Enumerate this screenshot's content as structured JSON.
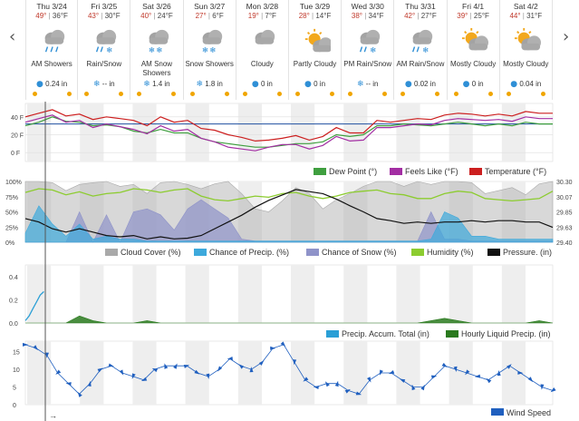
{
  "nav": {
    "prev_label": "‹",
    "next_label": "›"
  },
  "days": [
    {
      "date": "Thu 3/24",
      "hi": "49°",
      "lo": "36°F",
      "cond": "AM Showers",
      "pc_icon": "rain-drop-icon",
      "pc_glyph": "●",
      "precip": "0.24 in",
      "icon": "rain"
    },
    {
      "date": "Fri 3/25",
      "hi": "43°",
      "lo": "30°F",
      "cond": "Rain/Snow",
      "pc_icon": "snowflake-icon",
      "pc_glyph": "❄",
      "precip": "-- in",
      "icon": "rainsnow"
    },
    {
      "date": "Sat 3/26",
      "hi": "40°",
      "lo": "24°F",
      "cond": "AM Snow Showers",
      "pc_icon": "snowflake-icon",
      "pc_glyph": "❄",
      "precip": "1.4 in",
      "icon": "snow"
    },
    {
      "date": "Sun 3/27",
      "hi": "27°",
      "lo": "6°F",
      "cond": "Snow Showers",
      "pc_icon": "snowflake-icon",
      "pc_glyph": "❄",
      "precip": "1.8 in",
      "icon": "snow"
    },
    {
      "date": "Mon 3/28",
      "hi": "19°",
      "lo": "7°F",
      "cond": "Cloudy",
      "pc_icon": "rain-drop-icon",
      "pc_glyph": "●",
      "precip": "0 in",
      "icon": "cloudy"
    },
    {
      "date": "Tue 3/29",
      "hi": "28°",
      "lo": "14°F",
      "cond": "Partly Cloudy",
      "pc_icon": "rain-drop-icon",
      "pc_glyph": "●",
      "precip": "0 in",
      "icon": "partly"
    },
    {
      "date": "Wed 3/30",
      "hi": "38°",
      "lo": "34°F",
      "cond": "PM Rain/Snow",
      "pc_icon": "snowflake-icon",
      "pc_glyph": "❄",
      "precip": "-- in",
      "icon": "rainsnow"
    },
    {
      "date": "Thu 3/31",
      "hi": "42°",
      "lo": "27°F",
      "cond": "AM Rain/Snow",
      "pc_icon": "rain-drop-icon",
      "pc_glyph": "●",
      "precip": "0.02 in",
      "icon": "rainsnow"
    },
    {
      "date": "Fri 4/1",
      "hi": "39°",
      "lo": "25°F",
      "cond": "Mostly Cloudy",
      "pc_icon": "rain-drop-icon",
      "pc_glyph": "●",
      "precip": "0 in",
      "icon": "mostly"
    },
    {
      "date": "Sat 4/2",
      "hi": "44°",
      "lo": "31°F",
      "cond": "Mostly Cloudy",
      "pc_icon": "rain-drop-icon",
      "pc_glyph": "●",
      "precip": "0.04 in",
      "icon": "mostly"
    }
  ],
  "colors": {
    "temperature": "#cc1f1f",
    "feels_like": "#a32ea3",
    "dew_point": "#3f9f3f",
    "cloud_cover": "#a9a9a9",
    "chance_precip": "#3da9dc",
    "chance_snow": "#8f93c9",
    "humidity": "#8ccc2f",
    "pressure": "#111111",
    "accum": "#2a9fd6",
    "hourly_liquid": "#2a7a1e",
    "wind": "#1f5fbf",
    "reference_line": "#1f4fa0"
  },
  "chart_data": [
    {
      "type": "line",
      "y_ticks": [
        "40 F",
        "20 F",
        "0 F"
      ],
      "ylim": [
        -10,
        55
      ],
      "reference_line": 32,
      "series": [
        {
          "name": "Temperature (°F)",
          "values": [
            40,
            44,
            48,
            41,
            43,
            37,
            40,
            38,
            36,
            30,
            40,
            34,
            36,
            27,
            25,
            20,
            17,
            13,
            14,
            16,
            19,
            14,
            18,
            28,
            22,
            22,
            36,
            34,
            36,
            38,
            37,
            42,
            44,
            43,
            41,
            43,
            41,
            46,
            44,
            44
          ]
        },
        {
          "name": "Feels Like (°F)",
          "values": [
            34,
            38,
            42,
            34,
            36,
            28,
            32,
            29,
            26,
            21,
            30,
            24,
            26,
            16,
            12,
            6,
            4,
            2,
            6,
            9,
            9,
            4,
            8,
            18,
            13,
            14,
            28,
            28,
            30,
            32,
            31,
            36,
            38,
            37,
            36,
            37,
            35,
            40,
            38,
            38
          ]
        },
        {
          "name": "Dew Point (°)",
          "values": [
            30,
            34,
            40,
            35,
            34,
            30,
            31,
            29,
            24,
            22,
            26,
            22,
            22,
            16,
            12,
            10,
            8,
            6,
            6,
            8,
            10,
            10,
            12,
            20,
            18,
            20,
            30,
            30,
            32,
            31,
            30,
            32,
            34,
            32,
            30,
            32,
            30,
            34,
            32,
            32
          ]
        }
      ]
    },
    {
      "type": "area",
      "y_ticks": [
        "100%",
        "75%",
        "50%",
        "25%",
        "0%"
      ],
      "y2_ticks": [
        "30.30",
        "30.07",
        "29.85",
        "29.63",
        "29.40"
      ],
      "ylim": [
        0,
        100
      ],
      "y2lim": [
        29.4,
        30.3
      ],
      "series": [
        {
          "name": "Cloud Cover (%)",
          "values": [
            100,
            100,
            98,
            85,
            95,
            98,
            100,
            92,
            95,
            80,
            98,
            100,
            95,
            88,
            96,
            100,
            80,
            55,
            50,
            68,
            90,
            80,
            55,
            70,
            80,
            92,
            100,
            100,
            92,
            100,
            95,
            100,
            100,
            98,
            80,
            85,
            90,
            78,
            96,
            100
          ]
        },
        {
          "name": "Chance of Precip. (%)",
          "values": [
            15,
            60,
            30,
            10,
            30,
            5,
            10,
            5,
            5,
            2,
            2,
            2,
            2,
            2,
            2,
            2,
            2,
            2,
            2,
            2,
            2,
            2,
            2,
            2,
            2,
            2,
            2,
            2,
            2,
            2,
            5,
            50,
            40,
            10,
            10,
            5,
            5,
            5,
            5,
            5
          ]
        },
        {
          "name": "Chance of Snow (%)",
          "values": [
            0,
            0,
            0,
            0,
            50,
            0,
            45,
            0,
            50,
            55,
            45,
            20,
            55,
            70,
            55,
            40,
            5,
            2,
            2,
            2,
            2,
            2,
            2,
            2,
            2,
            2,
            2,
            2,
            2,
            2,
            50,
            5,
            5,
            2,
            2,
            2,
            2,
            2,
            2,
            2
          ]
        },
        {
          "name": "Humidity (%)",
          "values": [
            82,
            88,
            86,
            78,
            83,
            76,
            80,
            82,
            88,
            86,
            82,
            86,
            88,
            76,
            70,
            68,
            72,
            76,
            74,
            80,
            82,
            76,
            72,
            76,
            82,
            84,
            86,
            80,
            78,
            72,
            72,
            80,
            84,
            82,
            72,
            70,
            68,
            70,
            72,
            84
          ]
        },
        {
          "name": "Pressure. (in)",
          "values": [
            29.75,
            29.7,
            29.6,
            29.55,
            29.6,
            29.55,
            29.5,
            29.48,
            29.5,
            29.45,
            29.48,
            29.45,
            29.46,
            29.5,
            29.6,
            29.7,
            29.8,
            29.92,
            30.02,
            30.1,
            30.18,
            30.15,
            30.12,
            30.04,
            29.94,
            29.85,
            29.75,
            29.72,
            29.68,
            29.7,
            29.68,
            29.7,
            29.7,
            29.72,
            29.7,
            29.72,
            29.72,
            29.7,
            29.7,
            29.62
          ]
        }
      ]
    },
    {
      "type": "area",
      "y_ticks": [
        "0.4",
        "0.2",
        "0.0"
      ],
      "ylim": [
        0,
        0.5
      ],
      "series": [
        {
          "name": "Precip. Accum. Total (in)",
          "values": [
            0.02,
            0.06,
            0.12,
            0.18,
            0.24,
            0.27
          ]
        },
        {
          "name": "Hourly Liquid Precip. (in)",
          "values": [
            0,
            0,
            0,
            0,
            0.03,
            0.01,
            0,
            0,
            0,
            0.01,
            0,
            0,
            0,
            0,
            0,
            0,
            0,
            0,
            0,
            0,
            0,
            0,
            0,
            0,
            0,
            0,
            0,
            0,
            0,
            0,
            0.01,
            0.02,
            0.01,
            0,
            0,
            0,
            0,
            0,
            0.01,
            0
          ]
        }
      ]
    },
    {
      "type": "line",
      "y_ticks": [
        "15",
        "10",
        "5",
        "0"
      ],
      "ylim": [
        0,
        18
      ],
      "series": [
        {
          "name": "Wind Speed",
          "values": [
            17,
            16,
            14,
            9,
            6,
            3,
            6,
            10,
            11,
            9,
            8,
            7,
            10,
            11,
            11,
            11,
            9,
            8,
            10,
            13,
            11,
            10,
            12,
            16,
            17,
            12,
            7,
            5,
            6,
            6,
            4,
            3,
            7,
            9,
            9,
            7,
            5,
            5,
            8,
            11,
            10,
            9,
            8,
            7,
            9,
            11,
            9,
            7,
            5,
            4
          ]
        }
      ]
    }
  ],
  "legends": {
    "dew_point": "Dew Point (°)",
    "feels_like": "Feels Like (°F)",
    "temperature": "Temperature (°F)",
    "cloud_cover": "Cloud Cover (%)",
    "chance_precip": "Chance of Precip. (%)",
    "chance_snow": "Chance of Snow (%)",
    "humidity": "Humidity (%)",
    "pressure": "Pressure. (in)",
    "accum": "Precip. Accum. Total (in)",
    "hourly_liquid": "Hourly Liquid Precip. (in)",
    "wind": "Wind Speed"
  },
  "arrow_label": "→"
}
